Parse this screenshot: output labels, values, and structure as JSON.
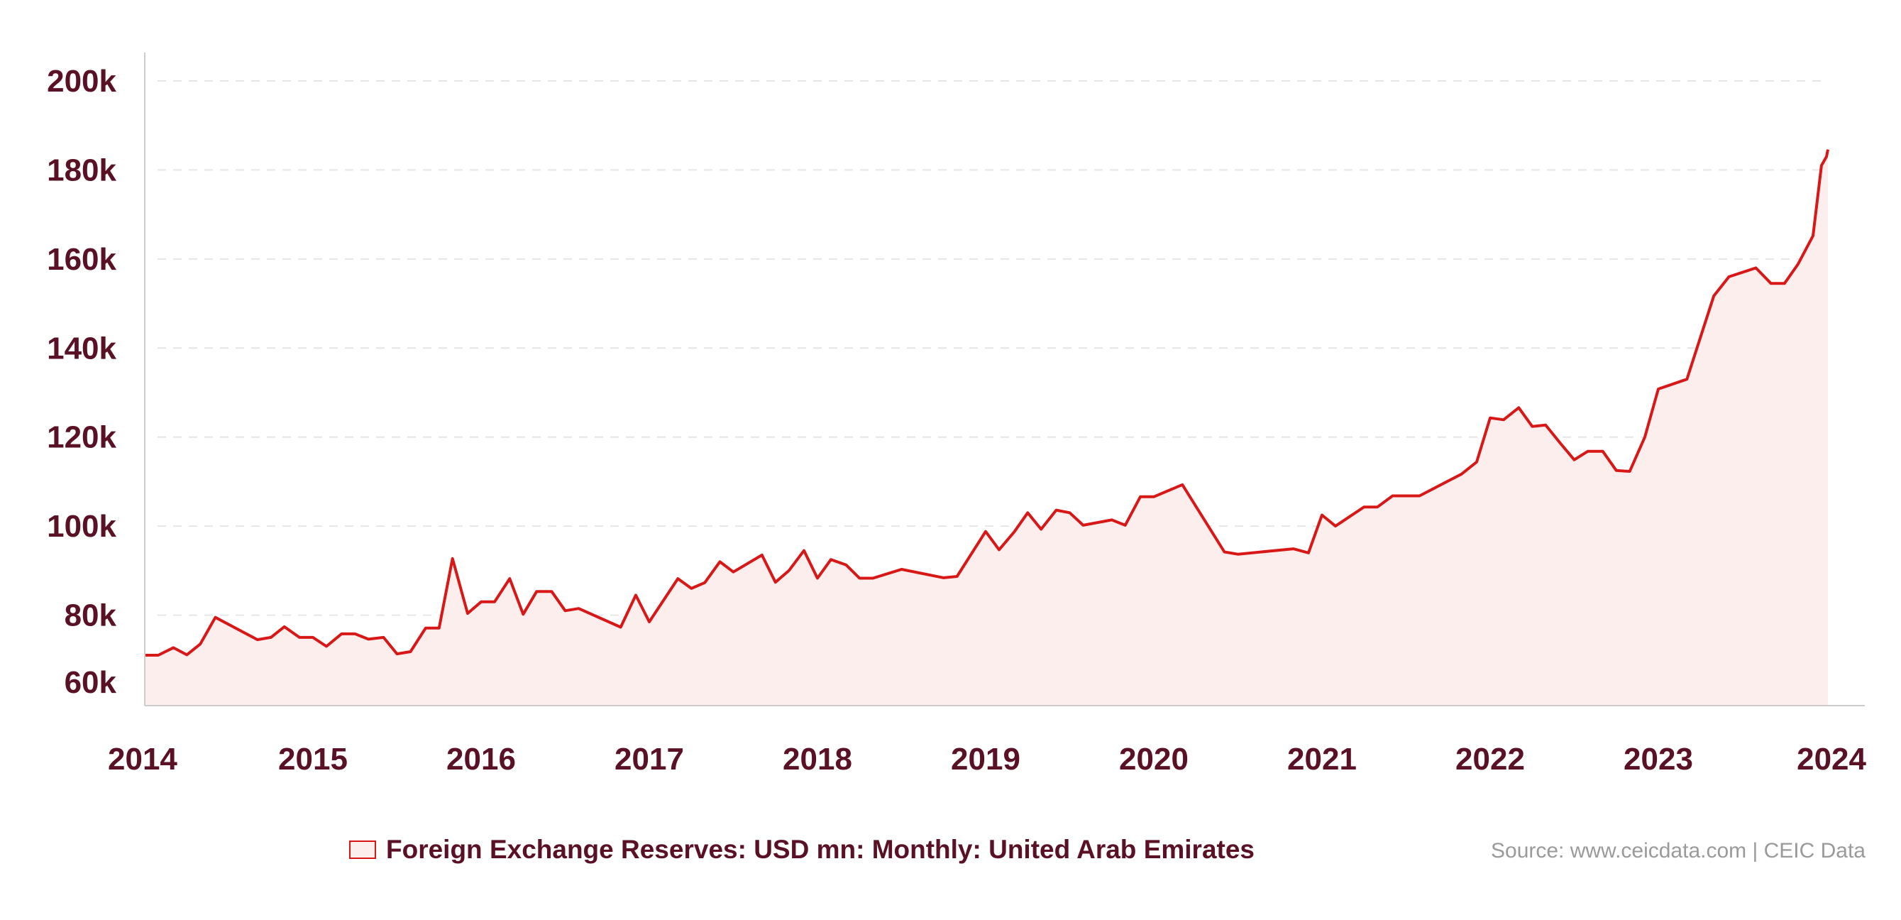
{
  "colors": {
    "line": "#d81717",
    "fill": "#fdeeee",
    "text": "#5a1126",
    "grid": "#e6e6e6",
    "axis": "#cccccc",
    "source": "#9a9a9a"
  },
  "legend": {
    "label": "Foreign Exchange Reserves: USD mn: Monthly: United Arab Emirates"
  },
  "source": "Source: www.ceicdata.com | CEIC Data",
  "chart_data": {
    "type": "area",
    "title": "",
    "xlabel": "",
    "ylabel": "",
    "ylim": [
      60000,
      200000
    ],
    "xlim": [
      2014.0,
      2024.0
    ],
    "grid": true,
    "legend_position": "bottom-center",
    "y_ticks": [
      {
        "value": 60000,
        "label": "60k"
      },
      {
        "value": 80000,
        "label": "80k"
      },
      {
        "value": 100000,
        "label": "100k"
      },
      {
        "value": 120000,
        "label": "120k"
      },
      {
        "value": 140000,
        "label": "140k"
      },
      {
        "value": 160000,
        "label": "160k"
      },
      {
        "value": 180000,
        "label": "180k"
      },
      {
        "value": 200000,
        "label": "200k"
      }
    ],
    "x_ticks": [
      {
        "value": 2014,
        "label": "2014"
      },
      {
        "value": 2015,
        "label": "2015"
      },
      {
        "value": 2016,
        "label": "2016"
      },
      {
        "value": 2017,
        "label": "2017"
      },
      {
        "value": 2018,
        "label": "2018"
      },
      {
        "value": 2019,
        "label": "2019"
      },
      {
        "value": 2020,
        "label": "2020"
      },
      {
        "value": 2021,
        "label": "2021"
      },
      {
        "value": 2022,
        "label": "2022"
      },
      {
        "value": 2023,
        "label": "2023"
      },
      {
        "value": 2024,
        "label": "2024"
      }
    ],
    "series": [
      {
        "name": "Foreign Exchange Reserves: USD mn: Monthly: United Arab Emirates",
        "points": [
          [
            2014.0,
            71000
          ],
          [
            2014.08,
            71000
          ],
          [
            2014.17,
            72700
          ],
          [
            2014.25,
            71100
          ],
          [
            2014.33,
            73500
          ],
          [
            2014.42,
            79500
          ],
          [
            2014.67,
            74500
          ],
          [
            2014.75,
            75000
          ],
          [
            2014.83,
            77400
          ],
          [
            2014.92,
            75000
          ],
          [
            2015.0,
            75000
          ],
          [
            2015.08,
            73000
          ],
          [
            2015.17,
            75800
          ],
          [
            2015.25,
            75800
          ],
          [
            2015.33,
            74600
          ],
          [
            2015.42,
            75000
          ],
          [
            2015.5,
            71300
          ],
          [
            2015.58,
            71800
          ],
          [
            2015.67,
            77100
          ],
          [
            2015.75,
            77100
          ],
          [
            2015.83,
            92700
          ],
          [
            2015.92,
            80400
          ],
          [
            2016.0,
            83000
          ],
          [
            2016.08,
            83000
          ],
          [
            2016.17,
            88200
          ],
          [
            2016.25,
            80200
          ],
          [
            2016.33,
            85300
          ],
          [
            2016.42,
            85300
          ],
          [
            2016.5,
            81000
          ],
          [
            2016.58,
            81500
          ],
          [
            2016.83,
            77300
          ],
          [
            2016.92,
            84500
          ],
          [
            2017.0,
            78500
          ],
          [
            2017.17,
            88200
          ],
          [
            2017.25,
            86000
          ],
          [
            2017.33,
            87300
          ],
          [
            2017.42,
            92000
          ],
          [
            2017.5,
            89700
          ],
          [
            2017.67,
            93500
          ],
          [
            2017.75,
            87400
          ],
          [
            2017.83,
            90000
          ],
          [
            2017.92,
            94500
          ],
          [
            2018.0,
            88300
          ],
          [
            2018.08,
            92500
          ],
          [
            2018.17,
            91300
          ],
          [
            2018.25,
            88300
          ],
          [
            2018.33,
            88300
          ],
          [
            2018.5,
            90300
          ],
          [
            2018.75,
            88400
          ],
          [
            2018.83,
            88700
          ],
          [
            2019.0,
            98800
          ],
          [
            2019.08,
            94700
          ],
          [
            2019.17,
            98700
          ],
          [
            2019.25,
            103000
          ],
          [
            2019.33,
            99300
          ],
          [
            2019.42,
            103600
          ],
          [
            2019.5,
            103000
          ],
          [
            2019.58,
            100200
          ],
          [
            2019.75,
            101400
          ],
          [
            2019.83,
            100200
          ],
          [
            2019.92,
            106600
          ],
          [
            2020.0,
            106600
          ],
          [
            2020.17,
            109300
          ],
          [
            2020.42,
            94200
          ],
          [
            2020.5,
            93700
          ],
          [
            2020.83,
            94900
          ],
          [
            2020.92,
            94000
          ],
          [
            2021.0,
            102500
          ],
          [
            2021.08,
            100000
          ],
          [
            2021.25,
            104300
          ],
          [
            2021.33,
            104300
          ],
          [
            2021.42,
            106800
          ],
          [
            2021.58,
            106800
          ],
          [
            2021.83,
            111700
          ],
          [
            2021.92,
            114400
          ],
          [
            2022.0,
            124300
          ],
          [
            2022.08,
            123900
          ],
          [
            2022.17,
            126600
          ],
          [
            2022.25,
            122400
          ],
          [
            2022.33,
            122700
          ],
          [
            2022.42,
            118500
          ],
          [
            2022.5,
            114900
          ],
          [
            2022.58,
            116800
          ],
          [
            2022.67,
            116800
          ],
          [
            2022.75,
            112500
          ],
          [
            2022.83,
            112300
          ],
          [
            2022.92,
            120000
          ],
          [
            2023.0,
            130800
          ],
          [
            2023.17,
            133000
          ],
          [
            2023.33,
            151700
          ],
          [
            2023.42,
            156000
          ],
          [
            2023.58,
            158000
          ],
          [
            2023.67,
            154500
          ],
          [
            2023.75,
            154500
          ],
          [
            2023.83,
            158800
          ],
          [
            2023.92,
            165200
          ],
          [
            2023.97,
            181000
          ],
          [
            2024.0,
            183000
          ],
          [
            2024.05,
            184600
          ]
        ]
      }
    ]
  }
}
